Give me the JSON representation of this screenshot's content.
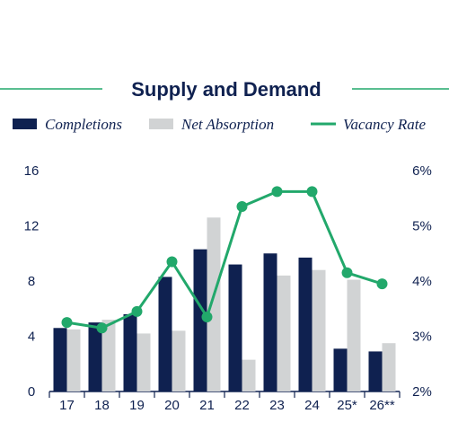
{
  "chart_data": {
    "type": "bar",
    "title": "Supply and Demand",
    "categories": [
      "17",
      "18",
      "19",
      "20",
      "21",
      "22",
      "23",
      "24",
      "25*",
      "26**"
    ],
    "series": [
      {
        "name": "Completions",
        "type": "bar",
        "axis": "left",
        "color": "#0f2150",
        "values": [
          4.6,
          5.0,
          5.6,
          8.3,
          10.3,
          9.2,
          10.0,
          9.7,
          3.1,
          2.9
        ]
      },
      {
        "name": "Net Absorption",
        "type": "bar",
        "axis": "left",
        "color": "#d1d3d4",
        "values": [
          4.5,
          5.2,
          4.2,
          4.4,
          12.6,
          2.3,
          8.4,
          8.8,
          8.1,
          3.5
        ]
      },
      {
        "name": "Vacancy Rate",
        "type": "line",
        "axis": "right",
        "color": "#22a86b",
        "values": [
          3.25,
          3.15,
          3.45,
          4.35,
          3.35,
          5.35,
          5.62,
          5.62,
          4.15,
          3.95
        ]
      }
    ],
    "y_left": {
      "ticks": [
        "0",
        "4",
        "8",
        "12",
        "16"
      ],
      "ylim": [
        0,
        16
      ]
    },
    "y_right": {
      "ticks": [
        "2%",
        "3%",
        "4%",
        "5%",
        "6%"
      ],
      "ylim": [
        2,
        6
      ]
    },
    "grid": false,
    "legend_position": "top"
  }
}
